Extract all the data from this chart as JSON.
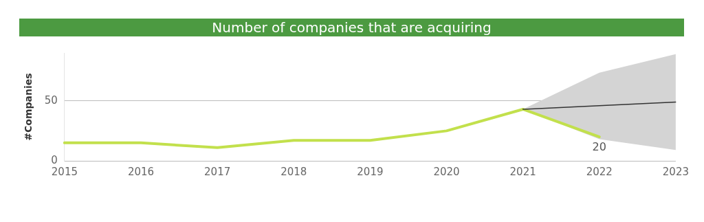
{
  "chart_data": {
    "type": "line",
    "title": "Number of companies that are acquiring",
    "ylabel": "#Companies",
    "categories": [
      "2015",
      "2016",
      "2017",
      "2018",
      "2019",
      "2020",
      "2021",
      "2022",
      "2023"
    ],
    "series": [
      {
        "color": "#c2e04c",
        "values": [
          15,
          15,
          11,
          17,
          17,
          25,
          43,
          20,
          null
        ],
        "value_labels": [
          null,
          null,
          null,
          null,
          null,
          null,
          null,
          "20",
          null
        ]
      },
      {
        "color": "#333333",
        "values": [
          null,
          null,
          null,
          null,
          null,
          null,
          43,
          46,
          49
        ],
        "lower": [
          null,
          null,
          null,
          null,
          null,
          null,
          43,
          18,
          9
        ],
        "upper": [
          null,
          null,
          null,
          null,
          null,
          null,
          43,
          73.5,
          89
        ]
      }
    ],
    "ylim": [
      0,
      90
    ],
    "yticks": [
      0,
      50
    ],
    "grid": "y",
    "legend": false,
    "marker": "none"
  }
}
